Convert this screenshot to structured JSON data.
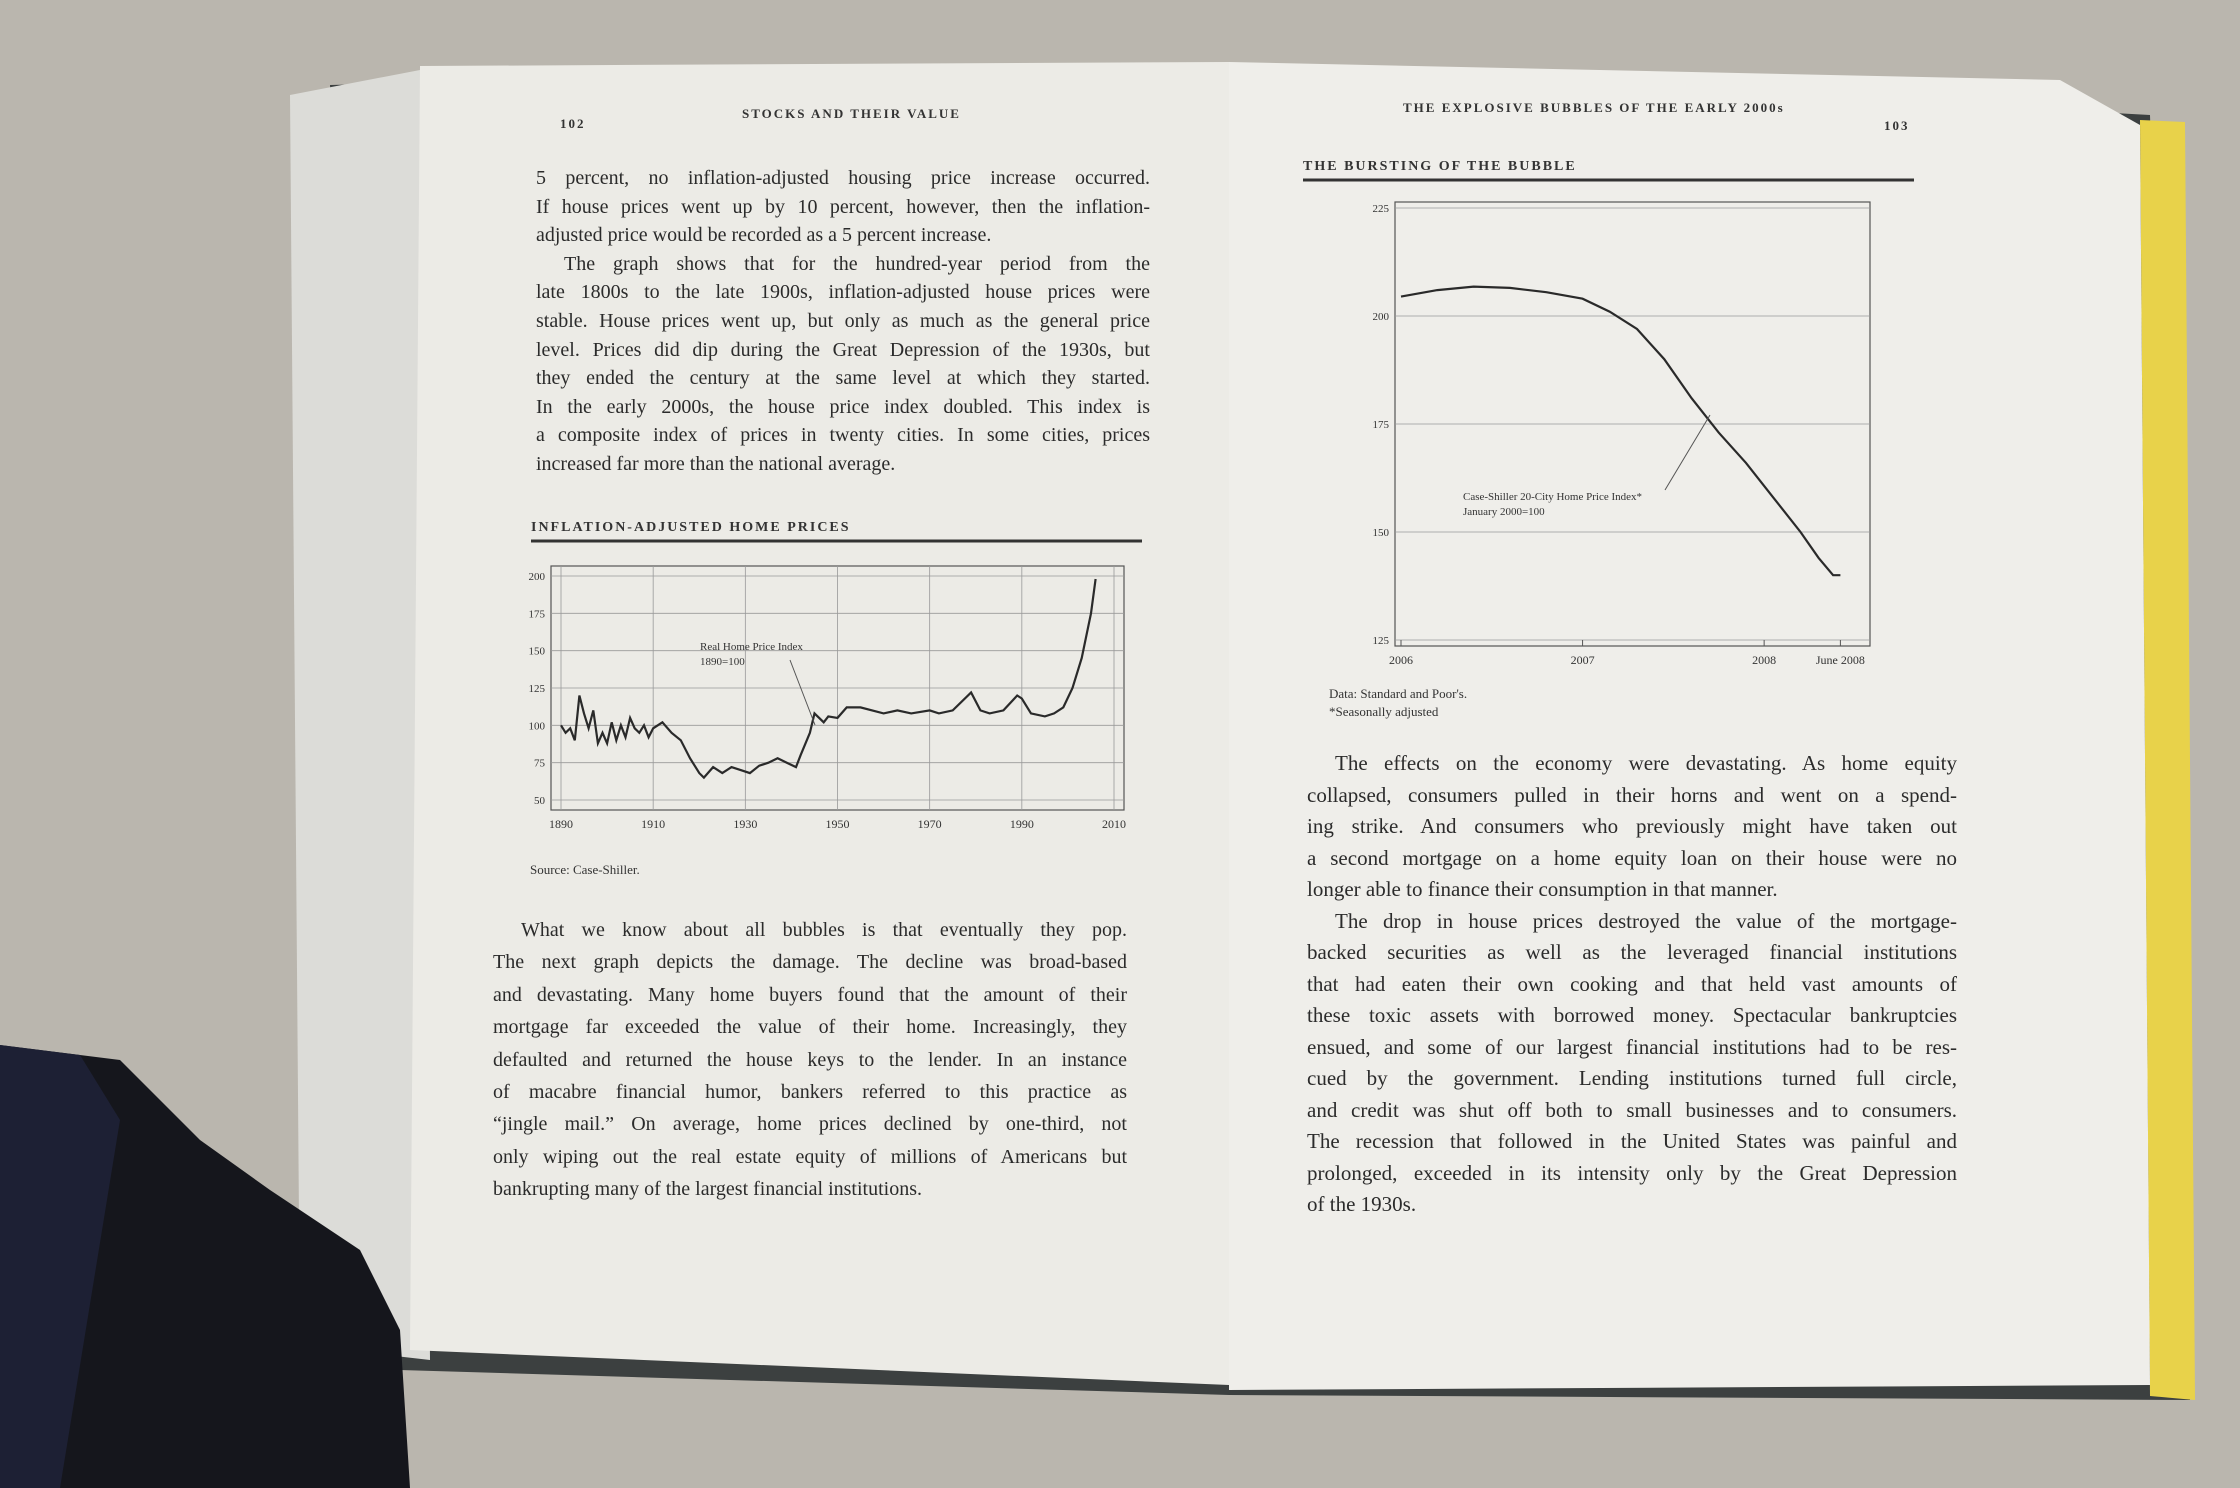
{
  "left_page": {
    "page_number": "102",
    "running_head": "STOCKS AND THEIR VALUE",
    "text_top": [
      [
        "5 percent, no inflation-adjusted housing price increase occurred.",
        "If house prices went up by 10 percent, however, then the inflation-",
        "adjusted price would be recorded as a 5 percent increase."
      ],
      [
        "The graph shows that for the hundred-year period from the",
        "late 1800s to the late 1900s, inflation-adjusted house prices were",
        "stable. House prices went up, but only as much as the general price",
        "level. Prices did dip during the Great Depression of the 1930s, but",
        "they ended the century at the same level at which they started.",
        "In the early 2000s, the house price index doubled. This index is",
        "a composite index of prices in twenty cities. In some cities, prices",
        "increased far more than the national average."
      ]
    ],
    "chart": {
      "type": "line",
      "title": "INFLATION-ADJUSTED HOME PRICES",
      "annotation": [
        "Real Home Price Index",
        "1890=100"
      ],
      "source": "Source: Case-Shiller.",
      "x": [
        1890,
        1891,
        1892,
        1893,
        1894,
        1895,
        1896,
        1897,
        1898,
        1899,
        1900,
        1901,
        1902,
        1903,
        1904,
        1905,
        1906,
        1907,
        1908,
        1909,
        1910,
        1912,
        1914,
        1916,
        1918,
        1920,
        1921,
        1923,
        1925,
        1927,
        1929,
        1931,
        1933,
        1935,
        1937,
        1939,
        1941,
        1942,
        1944,
        1945,
        1947,
        1948,
        1950,
        1952,
        1955,
        1960,
        1963,
        1966,
        1970,
        1972,
        1975,
        1979,
        1981,
        1983,
        1986,
        1989,
        1990,
        1992,
        1995,
        1997,
        1999,
        2001,
        2003,
        2005,
        2006
      ],
      "values": [
        100,
        95,
        98,
        90,
        120,
        108,
        98,
        110,
        88,
        95,
        88,
        102,
        90,
        100,
        92,
        105,
        98,
        95,
        100,
        92,
        98,
        102,
        95,
        90,
        78,
        68,
        65,
        72,
        68,
        72,
        70,
        68,
        73,
        75,
        78,
        75,
        72,
        80,
        95,
        108,
        102,
        106,
        105,
        112,
        112,
        108,
        110,
        108,
        110,
        108,
        110,
        122,
        110,
        108,
        110,
        120,
        118,
        108,
        106,
        108,
        112,
        125,
        145,
        175,
        198
      ],
      "color": "#2a2a2a",
      "xlim": [
        1890,
        2010
      ],
      "ylim": [
        50,
        200
      ],
      "xticks": [
        1890,
        1910,
        1930,
        1950,
        1970,
        1990,
        2010
      ],
      "yticks": [
        50,
        75,
        100,
        125,
        150,
        175,
        200
      ],
      "grid": true
    },
    "text_bottom": [
      [
        "What we know about all bubbles is that eventually they pop.",
        "The next graph depicts the damage. The decline was broad-based",
        "and devastating. Many home buyers found that the amount of their",
        "mortgage far exceeded the value of their home. Increasingly, they",
        "defaulted and returned the house keys to the lender. In an instance",
        "of macabre financial humor, bankers referred to this practice as",
        "“jingle mail.” On average, home prices declined by one-third, not",
        "only wiping out the real estate equity of millions of Americans but",
        "bankrupting many of the largest financial institutions."
      ]
    ]
  },
  "right_page": {
    "page_number": "103",
    "running_head": "THE EXPLOSIVE BUBBLES OF THE EARLY 2000s",
    "chart": {
      "type": "line",
      "title": "THE BURSTING OF THE BUBBLE",
      "annotation": [
        "Case-Shiller 20-City Home Price Index*",
        "January 2000=100"
      ],
      "notes": [
        "Data: Standard and Poor's.",
        "*Seasonally adjusted"
      ],
      "x": [
        2006,
        2006.2,
        2006.4,
        2006.6,
        2006.8,
        2007,
        2007.15,
        2007.3,
        2007.45,
        2007.6,
        2007.75,
        2007.9,
        2008.05,
        2008.2,
        2008.3,
        2008.38,
        2008.42
      ],
      "values": [
        204.5,
        206,
        206.8,
        206.5,
        205.5,
        204,
        201,
        197,
        190,
        181,
        173,
        166,
        158,
        150,
        144,
        140,
        140
      ],
      "color": "#2a2a2a",
      "xlim": [
        2006,
        2008.55
      ],
      "ylim": [
        125,
        225
      ],
      "xticks": [
        2006,
        2007,
        2008,
        {
          "value": 2008.42,
          "label": "June 2008"
        }
      ],
      "yticks": [
        125,
        150,
        175,
        200,
        225
      ],
      "grid": true
    },
    "text": [
      [
        "The effects on the economy were devastating. As home equity",
        "collapsed, consumers pulled in their horns and went on a spend-",
        "ing strike. And consumers who previously might have taken out",
        "a second mortgage on a home equity loan on their house were no",
        "longer able to finance their consumption in that manner."
      ],
      [
        "The drop in house prices destroyed the value of the mortgage-",
        "backed securities as well as the leveraged financial institutions",
        "that had eaten their own cooking and that held vast amounts of",
        "these toxic assets with borrowed money. Spectacular bankruptcies",
        "ensued, and some of our largest financial institutions had to be res-",
        "cued by the government. Lending institutions turned full circle,",
        "and credit was shut off both to small businesses and to consumers.",
        "The recession that followed in the United States was painful and",
        "prolonged, exceeded in its intensity only by the Great Depression",
        "of the 1930s."
      ]
    ]
  }
}
